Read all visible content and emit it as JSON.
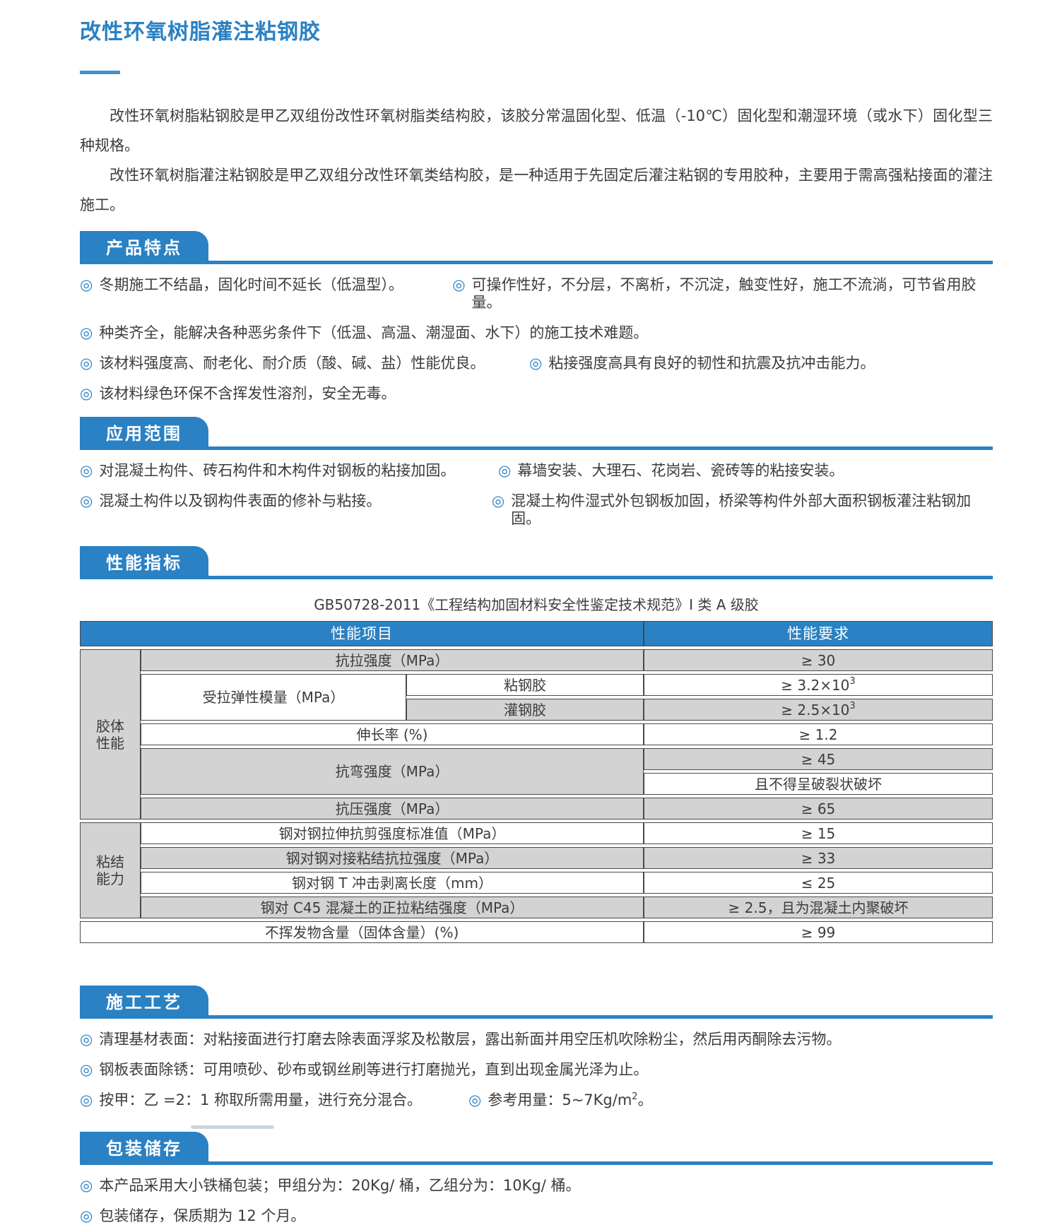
{
  "ui": {
    "bullet": "◎"
  },
  "colors": {
    "accent": "#2a81c3",
    "cell_gray": "#d3d3d3",
    "cell_border": "#4a4a4a"
  },
  "page": {
    "title": "改性环氧树脂灌注粘钢胶",
    "intro1": "改性环氧树脂粘钢胶是甲乙双组份改性环氧树脂类结构胶，该胶分常温固化型、低温（-10℃）固化型和潮湿环境（或水下）固化型三种规格。",
    "intro2": "改性环氧树脂灌注粘钢胶是甲乙双组分改性环氧类结构胶，是一种适用于先固定后灌注粘钢的专用胶种，主要用于需高强粘接面的灌注施工。"
  },
  "features": {
    "heading": "产品特点",
    "r1l": "冬期施工不结晶，固化时间不延长（低温型）。",
    "r1r": "可操作性好，不分层，不离析，不沉淀，触变性好，施工不流淌，可节省用胶量。",
    "r2": "种类齐全，能解决各种恶劣条件下（低温、高温、潮湿面、水下）的施工技术难题。",
    "r3l": "该材料强度高、耐老化、耐介质（酸、碱、盐）性能优良。",
    "r3r": "粘接强度高具有良好的韧性和抗震及抗冲击能力。",
    "r4": "该材料绿色环保不含挥发性溶剂，安全无毒。"
  },
  "applications": {
    "heading": "应用范围",
    "r1l": "对混凝土构件、砖石构件和木构件对钢板的粘接加固。",
    "r1r": "幕墙安装、大理石、花岗岩、瓷砖等的粘接安装。",
    "r2l": "混凝土构件以及钢构件表面的修补与粘接。",
    "r2r": "混凝土构件湿式外包钢板加固，桥梁等构件外部大面积钢板灌注粘钢加固。"
  },
  "performance": {
    "heading": "性能指标",
    "caption": "GB50728-2011《工程结构加固材料安全性鉴定技术规范》I 类 A 级胶",
    "table": {
      "header_item": "性能项目",
      "header_req": "性能要求",
      "cat_glue": "胶体\n性能",
      "cat_bond": "粘结\n能力",
      "tensile_item": "抗拉强度（MPa）",
      "tensile_req": "≥ 30",
      "modulus_item": "受拉弹性模量（MPa）",
      "bond_glue_item": "粘钢胶",
      "bond_glue_req_base": "≥ 3.2×10",
      "bond_glue_req_sup": "3",
      "pour_glue_item": "灌钢胶",
      "pour_glue_req_base": "≥ 2.5×10",
      "pour_glue_req_sup": "3",
      "elongation_item": "伸长率 (%)",
      "elongation_req": "≥ 1.2",
      "flexural_item": "抗弯强度（MPa）",
      "flexural_req1": "≥ 45",
      "flexural_req2": "且不得呈破裂状破坏",
      "compressive_item": "抗压强度（MPa）",
      "compressive_req": "≥ 65",
      "shear_item": "钢对钢拉伸抗剪强度标准值（MPa）",
      "shear_req": "≥ 15",
      "butt_item": "钢对钢对接粘结抗拉强度（MPa）",
      "butt_req": "≥ 33",
      "tpeel_item": "钢对钢 T 冲击剥离长度（mm）",
      "tpeel_req": "≤ 25",
      "c45_item": "钢对 C45 混凝土的正拉粘结强度（MPa）",
      "c45_req": "≥ 2.5，且为混凝土内聚破坏",
      "nonvolatile_item": "不挥发物含量（固体含量）(%)",
      "nonvolatile_req": "≥ 99"
    }
  },
  "process": {
    "heading": "施工工艺",
    "r1": "清理基材表面：对粘接面进行打磨去除表面浮浆及松散层，露出新面并用空压机吹除粉尘，然后用丙酮除去污物。",
    "r2": "钢板表面除锈：可用喷砂、砂布或钢丝刷等进行打磨抛光，直到出现金属光泽为止。",
    "r3l": "按甲：乙 =2：1 称取所需用量，进行充分混合。",
    "r3r_base": "参考用量：5~7Kg/m",
    "r3r_sup": "2",
    "r3r_tail": "。"
  },
  "packaging": {
    "heading": "包装储存",
    "r1": "本产品采用大小铁桶包装；甲组分为：20Kg/ 桶，乙组分为：10Kg/ 桶。",
    "r2": "包装储存，保质期为 12 个月。"
  }
}
